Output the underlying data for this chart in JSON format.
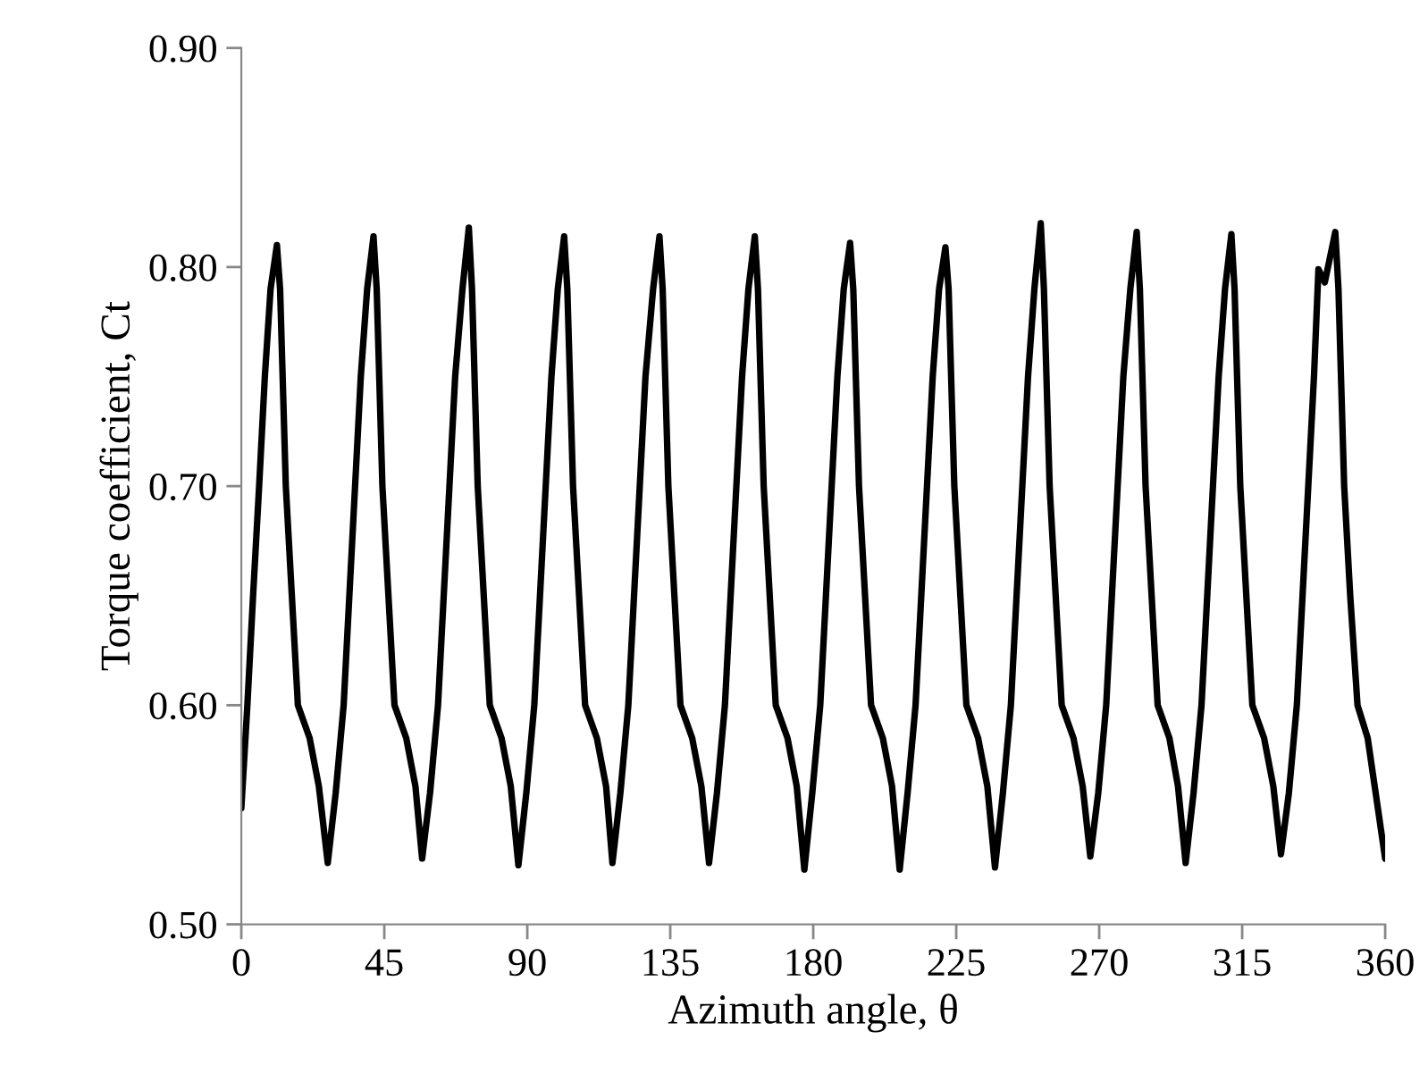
{
  "chart_data": {
    "type": "line",
    "xlabel": "Azimuth angle, θ",
    "ylabel": "Torque coefficient, Ct",
    "xlim": [
      0,
      360
    ],
    "xticks": [
      0,
      45,
      90,
      135,
      180,
      225,
      270,
      315,
      360
    ],
    "ylim": [
      0.5,
      0.9
    ],
    "yticks": [
      {
        "value": 0.5,
        "label": "0.50"
      },
      {
        "value": 0.6,
        "label": "0.60"
      },
      {
        "value": 0.7,
        "label": "0.70"
      },
      {
        "value": 0.8,
        "label": "0.80"
      },
      {
        "value": 0.9,
        "label": "0.90"
      }
    ],
    "grid": false,
    "legend": false,
    "marker": "none",
    "line_style": "solid",
    "series": [
      {
        "color": "#000000",
        "x": [
          0,
          1.9,
          3.7,
          5.6,
          7.4,
          9.2,
          11.2,
          12.2,
          14.0,
          15.9,
          17.8,
          21.5,
          24.4,
          27.2,
          29.7,
          32.2,
          34.0,
          35.8,
          37.6,
          39.6,
          41.6,
          42.6,
          44.4,
          46.3,
          48.2,
          51.9,
          54.8,
          56.9,
          59.4,
          61.9,
          63.7,
          65.5,
          67.3,
          69.6,
          71.6,
          72.6,
          74.4,
          76.3,
          78.2,
          81.9,
          84.8,
          87.2,
          89.7,
          92.2,
          94.0,
          95.8,
          97.6,
          99.6,
          101.6,
          102.6,
          104.4,
          106.3,
          108.2,
          111.9,
          114.8,
          116.8,
          119.3,
          121.8,
          123.6,
          125.4,
          127.2,
          129.6,
          131.6,
          132.6,
          134.4,
          136.3,
          138.2,
          141.9,
          144.8,
          147.2,
          149.7,
          152.2,
          154.0,
          155.8,
          157.6,
          159.6,
          161.6,
          162.6,
          164.4,
          166.3,
          168.2,
          171.9,
          174.8,
          177.2,
          179.7,
          182.2,
          184.0,
          185.8,
          187.6,
          189.6,
          191.6,
          192.6,
          194.4,
          196.3,
          198.2,
          201.9,
          204.8,
          207.2,
          209.7,
          212.2,
          214.0,
          215.8,
          217.6,
          219.6,
          221.6,
          222.6,
          224.4,
          226.3,
          228.2,
          231.9,
          234.8,
          237.2,
          239.7,
          242.2,
          244.0,
          245.8,
          247.6,
          249.6,
          251.6,
          252.6,
          254.4,
          256.3,
          258.2,
          261.9,
          264.8,
          267.2,
          269.7,
          272.2,
          274.0,
          275.8,
          277.6,
          279.8,
          281.8,
          282.8,
          284.6,
          286.5,
          288.4,
          292.1,
          294.8,
          297.2,
          299.7,
          302.2,
          304.0,
          305.8,
          307.6,
          309.6,
          311.6,
          312.6,
          314.4,
          316.3,
          318.2,
          321.9,
          324.8,
          327.2,
          329.7,
          332.2,
          334.0,
          335.8,
          337.6,
          339.0,
          341.0,
          344.3,
          345.3,
          347.1,
          349.0,
          351.3,
          354.5,
          357.2,
          360
        ],
        "values": [
          0.553,
          0.6,
          0.65,
          0.7,
          0.75,
          0.79,
          0.81,
          0.79,
          0.7,
          0.65,
          0.6,
          0.585,
          0.563,
          0.528,
          0.56,
          0.6,
          0.65,
          0.7,
          0.75,
          0.79,
          0.814,
          0.79,
          0.7,
          0.65,
          0.6,
          0.585,
          0.563,
          0.53,
          0.56,
          0.6,
          0.65,
          0.7,
          0.75,
          0.79,
          0.818,
          0.79,
          0.7,
          0.65,
          0.6,
          0.585,
          0.563,
          0.527,
          0.56,
          0.6,
          0.65,
          0.7,
          0.75,
          0.79,
          0.814,
          0.79,
          0.7,
          0.65,
          0.6,
          0.585,
          0.563,
          0.528,
          0.56,
          0.6,
          0.65,
          0.7,
          0.75,
          0.79,
          0.814,
          0.79,
          0.7,
          0.65,
          0.6,
          0.585,
          0.563,
          0.528,
          0.56,
          0.6,
          0.65,
          0.7,
          0.75,
          0.79,
          0.814,
          0.79,
          0.7,
          0.65,
          0.6,
          0.585,
          0.563,
          0.525,
          0.56,
          0.6,
          0.65,
          0.7,
          0.75,
          0.79,
          0.811,
          0.79,
          0.7,
          0.65,
          0.6,
          0.585,
          0.563,
          0.525,
          0.56,
          0.6,
          0.65,
          0.7,
          0.75,
          0.79,
          0.809,
          0.79,
          0.7,
          0.65,
          0.6,
          0.585,
          0.563,
          0.526,
          0.56,
          0.6,
          0.65,
          0.7,
          0.75,
          0.79,
          0.82,
          0.79,
          0.7,
          0.65,
          0.6,
          0.585,
          0.563,
          0.531,
          0.56,
          0.6,
          0.65,
          0.7,
          0.75,
          0.79,
          0.816,
          0.79,
          0.7,
          0.65,
          0.6,
          0.585,
          0.563,
          0.528,
          0.56,
          0.6,
          0.65,
          0.7,
          0.75,
          0.79,
          0.815,
          0.79,
          0.7,
          0.65,
          0.6,
          0.585,
          0.563,
          0.532,
          0.56,
          0.6,
          0.65,
          0.7,
          0.75,
          0.799,
          0.793,
          0.816,
          0.79,
          0.7,
          0.65,
          0.6,
          0.585,
          0.558,
          0.53
        ]
      }
    ]
  }
}
